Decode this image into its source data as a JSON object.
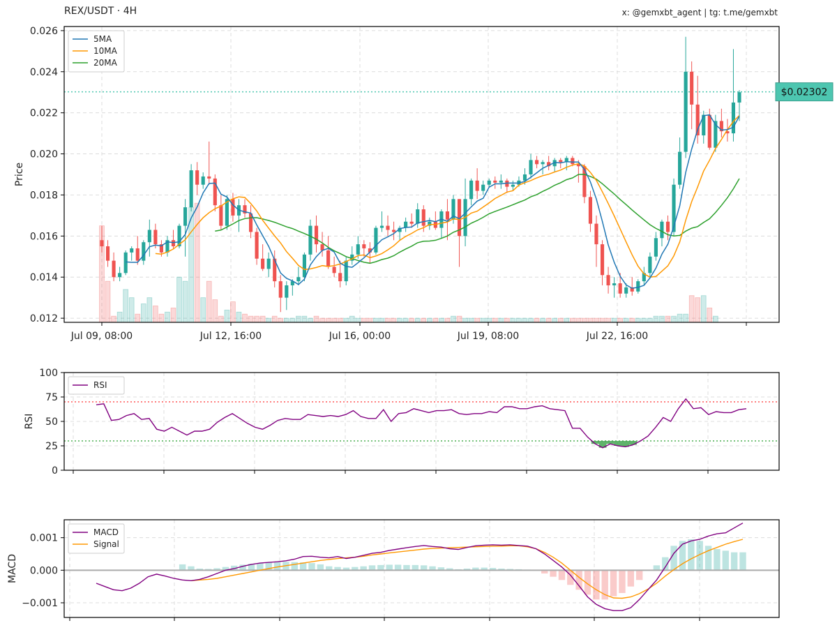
{
  "header": {
    "title": "REX/USDT · 4H",
    "credit": "x: @gemxbt_agent | tg: t.me/gemxbt"
  },
  "colors": {
    "up": "#26a69a",
    "down": "#ef5350",
    "ma5": "#1f77b4",
    "ma10": "#ff9800",
    "ma20": "#2ca02c",
    "rsi": "#800080",
    "macd": "#800080",
    "signal": "#ff9800",
    "price_line": "#4dc6b0",
    "overbought": "#ff5555",
    "oversold": "#4caf50"
  },
  "chart_data": [
    {
      "type": "candlestick",
      "ylabel": "Price",
      "ylim": [
        0.0118,
        0.0262
      ],
      "yticks": [
        "0.012",
        "0.014",
        "0.016",
        "0.018",
        "0.020",
        "0.022",
        "0.024",
        "0.026"
      ],
      "xticks": [
        "Jul 09, 08:00",
        "Jul 12, 16:00",
        "Jul 16, 00:00",
        "Jul 19, 08:00",
        "Jul 22, 16:00"
      ],
      "current_price": 0.02302,
      "current_price_label": "$0.02302",
      "grid": true,
      "legend": {
        "position": "top-left",
        "entries": [
          "5MA",
          "10MA",
          "20MA"
        ]
      },
      "candles": [
        [
          0.0158,
          0.0165,
          0.0152,
          0.0155
        ],
        [
          0.0155,
          0.0158,
          0.0145,
          0.0148
        ],
        [
          0.0148,
          0.0152,
          0.0138,
          0.014
        ],
        [
          0.014,
          0.0145,
          0.0138,
          0.0142
        ],
        [
          0.0142,
          0.0153,
          0.0141,
          0.0152
        ],
        [
          0.0152,
          0.0155,
          0.0148,
          0.0154
        ],
        [
          0.0154,
          0.016,
          0.0146,
          0.0148
        ],
        [
          0.0148,
          0.0158,
          0.0146,
          0.0157
        ],
        [
          0.0157,
          0.0168,
          0.015,
          0.0163
        ],
        [
          0.0163,
          0.0166,
          0.0154,
          0.0156
        ],
        [
          0.0156,
          0.0158,
          0.015,
          0.0152
        ],
        [
          0.0152,
          0.016,
          0.015,
          0.0158
        ],
        [
          0.0158,
          0.0163,
          0.0154,
          0.0155
        ],
        [
          0.0155,
          0.0166,
          0.0154,
          0.0165
        ],
        [
          0.0165,
          0.0178,
          0.015,
          0.0174
        ],
        [
          0.0174,
          0.0195,
          0.0172,
          0.0192
        ],
        [
          0.0192,
          0.0196,
          0.018,
          0.0185
        ],
        [
          0.0185,
          0.0191,
          0.0183,
          0.0189
        ],
        [
          0.0189,
          0.0206,
          0.0185,
          0.0188
        ],
        [
          0.0188,
          0.019,
          0.0172,
          0.0175
        ],
        [
          0.0175,
          0.018,
          0.0163,
          0.0165
        ],
        [
          0.0165,
          0.018,
          0.0163,
          0.0178
        ],
        [
          0.0178,
          0.0181,
          0.0167,
          0.017
        ],
        [
          0.017,
          0.0178,
          0.0162,
          0.0175
        ],
        [
          0.0175,
          0.0178,
          0.0169,
          0.0171
        ],
        [
          0.0171,
          0.0175,
          0.0159,
          0.0162
        ],
        [
          0.0162,
          0.0164,
          0.0146,
          0.0149
        ],
        [
          0.0149,
          0.0156,
          0.0143,
          0.0144
        ],
        [
          0.0144,
          0.0152,
          0.014,
          0.0149
        ],
        [
          0.0149,
          0.0153,
          0.0135,
          0.0138
        ],
        [
          0.0138,
          0.0141,
          0.0123,
          0.013
        ],
        [
          0.013,
          0.0138,
          0.0124,
          0.0136
        ],
        [
          0.0136,
          0.0139,
          0.0131,
          0.0138
        ],
        [
          0.0138,
          0.0145,
          0.0136,
          0.014
        ],
        [
          0.014,
          0.0152,
          0.0138,
          0.0151
        ],
        [
          0.0151,
          0.0168,
          0.0148,
          0.0165
        ],
        [
          0.0165,
          0.017,
          0.0152,
          0.0156
        ],
        [
          0.0156,
          0.0162,
          0.015,
          0.0153
        ],
        [
          0.0153,
          0.016,
          0.0144,
          0.0145
        ],
        [
          0.0145,
          0.015,
          0.014,
          0.0142
        ],
        [
          0.0142,
          0.0148,
          0.0135,
          0.0138
        ],
        [
          0.0138,
          0.015,
          0.0136,
          0.0148
        ],
        [
          0.0148,
          0.0155,
          0.0146,
          0.0151
        ],
        [
          0.0151,
          0.016,
          0.0149,
          0.0156
        ],
        [
          0.0156,
          0.0158,
          0.015,
          0.0154
        ],
        [
          0.0154,
          0.0157,
          0.0147,
          0.0152
        ],
        [
          0.0152,
          0.0165,
          0.0151,
          0.0164
        ],
        [
          0.0164,
          0.0172,
          0.0162,
          0.0165
        ],
        [
          0.0165,
          0.017,
          0.016,
          0.0163
        ],
        [
          0.0163,
          0.0167,
          0.0158,
          0.0162
        ],
        [
          0.0162,
          0.0165,
          0.0158,
          0.0164
        ],
        [
          0.0164,
          0.0169,
          0.0162,
          0.0167
        ],
        [
          0.0167,
          0.0171,
          0.0164,
          0.0166
        ],
        [
          0.0166,
          0.0176,
          0.0164,
          0.0173
        ],
        [
          0.0173,
          0.0175,
          0.0162,
          0.0165
        ],
        [
          0.0165,
          0.0169,
          0.0163,
          0.0167
        ],
        [
          0.0167,
          0.0172,
          0.0163,
          0.0164
        ],
        [
          0.0164,
          0.0173,
          0.0159,
          0.0172
        ],
        [
          0.0172,
          0.0178,
          0.0158,
          0.0168
        ],
        [
          0.0168,
          0.018,
          0.0166,
          0.0178
        ],
        [
          0.0178,
          0.0178,
          0.0145,
          0.016
        ],
        [
          0.016,
          0.0188,
          0.0155,
          0.0178
        ],
        [
          0.0178,
          0.0188,
          0.0175,
          0.0187
        ],
        [
          0.0187,
          0.0193,
          0.0178,
          0.0182
        ],
        [
          0.0182,
          0.0187,
          0.018,
          0.0185
        ],
        [
          0.0185,
          0.0188,
          0.0184,
          0.0187
        ],
        [
          0.0187,
          0.0189,
          0.0183,
          0.0186
        ],
        [
          0.0186,
          0.019,
          0.0183,
          0.0187
        ],
        [
          0.0187,
          0.0188,
          0.0181,
          0.0184
        ],
        [
          0.0184,
          0.0187,
          0.0182,
          0.0185
        ],
        [
          0.0185,
          0.0189,
          0.0184,
          0.0187
        ],
        [
          0.0187,
          0.0193,
          0.0185,
          0.019
        ],
        [
          0.019,
          0.02,
          0.0188,
          0.0197
        ],
        [
          0.0197,
          0.0199,
          0.0193,
          0.0195
        ],
        [
          0.0195,
          0.0197,
          0.019,
          0.0196
        ],
        [
          0.0196,
          0.0199,
          0.0192,
          0.0194
        ],
        [
          0.0194,
          0.0198,
          0.0191,
          0.0197
        ],
        [
          0.0197,
          0.0198,
          0.0193,
          0.0196
        ],
        [
          0.0196,
          0.0199,
          0.0192,
          0.0198
        ],
        [
          0.0198,
          0.0199,
          0.0194,
          0.0195
        ],
        [
          0.0195,
          0.0197,
          0.0186,
          0.0194
        ],
        [
          0.0194,
          0.0195,
          0.0176,
          0.0179
        ],
        [
          0.0179,
          0.0182,
          0.0162,
          0.0166
        ],
        [
          0.0166,
          0.017,
          0.0145,
          0.0156
        ],
        [
          0.0156,
          0.0158,
          0.0136,
          0.0141
        ],
        [
          0.0141,
          0.0145,
          0.0132,
          0.0136
        ],
        [
          0.0136,
          0.014,
          0.013,
          0.0137
        ],
        [
          0.0137,
          0.0142,
          0.013,
          0.0132
        ],
        [
          0.0132,
          0.0137,
          0.013,
          0.0135
        ],
        [
          0.0135,
          0.014,
          0.0131,
          0.0133
        ],
        [
          0.0133,
          0.0139,
          0.0132,
          0.0138
        ],
        [
          0.0138,
          0.0145,
          0.0136,
          0.0142
        ],
        [
          0.0142,
          0.0152,
          0.014,
          0.015
        ],
        [
          0.015,
          0.0162,
          0.0148,
          0.0159
        ],
        [
          0.0159,
          0.0168,
          0.0155,
          0.0167
        ],
        [
          0.0167,
          0.017,
          0.0158,
          0.0162
        ],
        [
          0.0162,
          0.0188,
          0.016,
          0.0185
        ],
        [
          0.0185,
          0.0208,
          0.0183,
          0.0201
        ],
        [
          0.0201,
          0.0257,
          0.0198,
          0.024
        ],
        [
          0.024,
          0.0245,
          0.0212,
          0.0224
        ],
        [
          0.0224,
          0.0238,
          0.0205,
          0.0209
        ],
        [
          0.0209,
          0.0221,
          0.0205,
          0.0219
        ],
        [
          0.0219,
          0.0222,
          0.0202,
          0.0203
        ],
        [
          0.0203,
          0.0219,
          0.0201,
          0.0216
        ],
        [
          0.0216,
          0.0222,
          0.0208,
          0.0211
        ],
        [
          0.0211,
          0.0217,
          0.0206,
          0.021
        ],
        [
          0.021,
          0.0251,
          0.0206,
          0.0225
        ],
        [
          0.0225,
          0.0231,
          0.0216,
          0.023
        ]
      ],
      "volume": [
        0.0165,
        0.0138,
        0.0121,
        0.0123,
        0.0134,
        0.013,
        0.0122,
        0.0127,
        0.013,
        0.0126,
        0.0122,
        0.0123,
        0.0125,
        0.014,
        0.0138,
        0.0174,
        0.0176,
        0.013,
        0.0138,
        0.0129,
        0.0121,
        0.0124,
        0.0128,
        0.0123,
        0.0122,
        0.0121,
        0.0121,
        0.0121,
        0.012,
        0.0121,
        0.012,
        0.012,
        0.012,
        0.0121,
        0.0121,
        0.012,
        0.0121,
        0.012,
        0.012,
        0.012,
        0.012,
        0.012,
        0.0121,
        0.012,
        0.012,
        0.012,
        0.012,
        0.012,
        0.012,
        0.012,
        0.012,
        0.012,
        0.012,
        0.012,
        0.012,
        0.012,
        0.012,
        0.012,
        0.012,
        0.0121,
        0.0121,
        0.012,
        0.012,
        0.012,
        0.012,
        0.012,
        0.012,
        0.012,
        0.012,
        0.012,
        0.012,
        0.012,
        0.012,
        0.012,
        0.012,
        0.012,
        0.012,
        0.012,
        0.012,
        0.012,
        0.012,
        0.012,
        0.012,
        0.012,
        0.012,
        0.012,
        0.012,
        0.012,
        0.012,
        0.012,
        0.012,
        0.012,
        0.012,
        0.0121,
        0.0121,
        0.0121,
        0.0121,
        0.0122,
        0.0122,
        0.0131,
        0.013,
        0.0131,
        0.0125,
        0.0121
      ]
    },
    {
      "type": "line",
      "ylabel": "RSI",
      "ylim": [
        0,
        100
      ],
      "yticks": [
        "0",
        "25",
        "50",
        "75",
        "100"
      ],
      "overbought": 70,
      "oversold": 30,
      "legend": {
        "position": "top-left",
        "entries": [
          "RSI"
        ]
      },
      "series": [
        {
          "name": "RSI",
          "values": [
            67,
            68,
            51,
            52,
            56,
            58,
            52,
            53,
            42,
            40,
            44,
            40,
            36,
            40,
            40,
            42,
            49,
            54,
            58,
            53,
            48,
            44,
            42,
            46,
            51,
            53,
            52,
            52,
            57,
            56,
            55,
            56,
            55,
            57,
            61,
            55,
            53,
            53,
            62,
            50,
            58,
            59,
            63,
            61,
            59,
            61,
            61,
            62,
            58,
            57,
            58,
            58,
            60,
            59,
            65,
            65,
            63,
            63,
            65,
            66,
            63,
            62,
            61,
            43,
            43,
            34,
            27,
            23,
            27,
            25,
            24,
            26,
            30,
            35,
            44,
            54,
            50,
            63,
            73,
            63,
            64,
            57,
            60,
            59,
            59,
            62,
            63
          ]
        }
      ]
    },
    {
      "type": "bar+line",
      "ylabel": "MACD",
      "ylim": [
        -0.00145,
        0.00155
      ],
      "yticks": [
        "−0.001",
        "0.000",
        "0.001"
      ],
      "legend": {
        "position": "top-left",
        "entries": [
          "MACD",
          "Signal"
        ]
      },
      "series": [
        {
          "name": "MACD",
          "values": [
            -0.0004,
            -0.0005,
            -0.0006,
            -0.00063,
            -0.00055,
            -0.0004,
            -0.0002,
            -0.00012,
            -0.00018,
            -0.00025,
            -0.0003,
            -0.00032,
            -0.00028,
            -0.0002,
            -0.0001,
            0.0,
            5e-05,
            0.00012,
            0.00018,
            0.00022,
            0.00024,
            0.00026,
            0.00029,
            0.00034,
            0.00042,
            0.00043,
            0.0004,
            0.00038,
            0.00042,
            0.00036,
            0.0004,
            0.00046,
            0.00052,
            0.00055,
            0.00061,
            0.00065,
            0.00069,
            0.00073,
            0.00076,
            0.00073,
            0.00071,
            0.00066,
            0.00064,
            0.0007,
            0.00075,
            0.00077,
            0.00078,
            0.00077,
            0.00078,
            0.00076,
            0.00074,
            0.00066,
            0.0005,
            0.0003,
            0.0001,
            -0.00015,
            -0.00048,
            -0.00082,
            -0.00105,
            -0.00118,
            -0.00124,
            -0.00124,
            -0.00115,
            -0.0009,
            -0.0006,
            -0.0003,
            0.0001,
            0.00052,
            0.0008,
            0.0009,
            0.00095,
            0.00105,
            0.00112,
            0.00115,
            0.0013,
            0.00145
          ]
        },
        {
          "name": "Signal",
          "values": [
            null,
            null,
            null,
            null,
            null,
            null,
            null,
            null,
            null,
            null,
            null,
            -0.00032,
            -0.0003,
            -0.00028,
            -0.00025,
            -0.0002,
            -0.00015,
            -0.0001,
            -5e-05,
            0.0,
            5e-05,
            0.0001,
            0.00014,
            0.00018,
            0.00022,
            0.00026,
            0.0003,
            0.00033,
            0.00036,
            0.00038,
            0.0004,
            0.00043,
            0.00047,
            0.0005,
            0.00053,
            0.00056,
            0.00059,
            0.00062,
            0.00065,
            0.00067,
            0.00068,
            0.00069,
            0.0007,
            0.00071,
            0.00072,
            0.00073,
            0.00074,
            0.00074,
            0.00075,
            0.00075,
            0.00072,
            0.00066,
            0.00055,
            0.0004,
            0.00022,
            0.0,
            -0.00022,
            -0.00042,
            -0.0006,
            -0.00075,
            -0.00085,
            -0.00086,
            -0.00082,
            -0.00072,
            -0.00058,
            -0.0004,
            -0.00018,
            2e-05,
            0.0002,
            0.00035,
            0.00048,
            0.0006,
            0.0007,
            0.0008,
            0.00088,
            0.00095
          ]
        },
        {
          "name": "Histogram",
          "values": [
            0,
            0,
            0,
            0,
            0,
            0,
            0,
            0,
            0,
            0,
            0.00018,
            0.00012,
            5e-05,
            4e-05,
            6e-05,
            0.0001,
            0.00014,
            0.00017,
            0.0002,
            0.00022,
            0.00024,
            0.00025,
            0.00026,
            0.00025,
            0.00024,
            0.00022,
            0.00018,
            0.00012,
            0.0001,
            8e-05,
            0.0001,
            0.00012,
            0.00015,
            0.00016,
            0.00017,
            0.00017,
            0.00016,
            0.00016,
            0.00015,
            0.00012,
            9e-05,
            6e-05,
            3e-05,
            5e-05,
            8e-05,
            8e-05,
            7e-05,
            5e-05,
            4e-05,
            3e-05,
            2e-05,
            0.0,
            -0.0001,
            -0.0002,
            -0.0003,
            -0.00045,
            -0.0006,
            -0.00075,
            -0.0009,
            -0.0009,
            -0.0008,
            -0.0007,
            -0.0005,
            -0.0003,
            0.0,
            0.00015,
            0.0004,
            0.00075,
            0.0009,
            0.00095,
            0.0009,
            0.00075,
            0.00065,
            0.0006,
            0.00055,
            0.00055
          ]
        }
      ]
    }
  ]
}
